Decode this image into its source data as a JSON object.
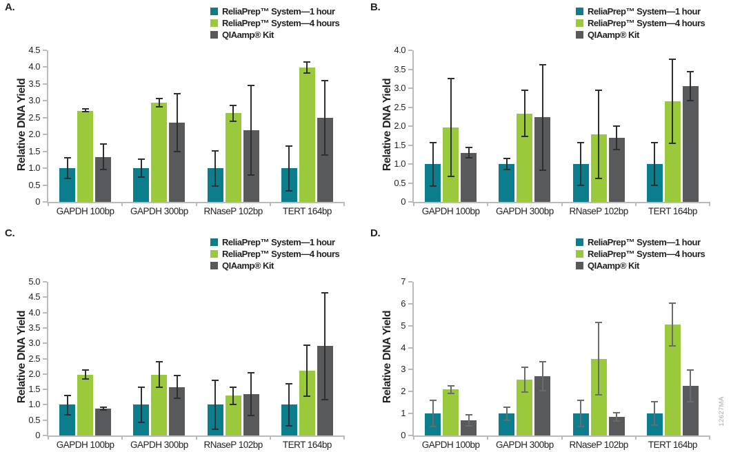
{
  "figure_id": "12627MA",
  "ylabel": "Relative DNA Yield",
  "categories": [
    "GAPDH 100bp",
    "GAPDH 300bp",
    "RNaseP 102bp",
    "TERT 164bp"
  ],
  "legend": [
    {
      "label": "ReliaPrep™ System—1 hour",
      "color": "#0b7d8c"
    },
    {
      "label": "ReliaPrep™ System—4 hours",
      "color": "#9aca3c"
    },
    {
      "label": "QIAamp® Kit",
      "color": "#58595b"
    }
  ],
  "colors": {
    "axis": "#b9babc",
    "text": "#231f20",
    "figure_number": "#a7a9ac"
  },
  "chart_data": [
    {
      "panel": "A.",
      "type": "bar",
      "ylim": [
        0,
        4.5
      ],
      "ytick_step": 0.5,
      "ytick_labels": [
        "0",
        "0.5",
        "1.0",
        "1.5",
        "2.0",
        "2.5",
        "3.0",
        "3.5",
        "4.0",
        "4.5"
      ],
      "error_color": "#2d2e30",
      "series": [
        {
          "name": "ReliaPrep™ System—1 hour",
          "values": [
            1.0,
            1.0,
            1.0,
            1.0
          ],
          "err_low": [
            0.7,
            0.73,
            0.48,
            0.33
          ],
          "err_high": [
            1.3,
            1.27,
            1.52,
            1.66
          ]
        },
        {
          "name": "ReliaPrep™ System—4 hours",
          "values": [
            2.71,
            2.95,
            2.64,
            3.99
          ],
          "err_low": [
            2.67,
            2.83,
            2.4,
            3.83
          ],
          "err_high": [
            2.76,
            3.06,
            2.87,
            4.15
          ]
        },
        {
          "name": "QIAamp® Kit",
          "values": [
            1.33,
            2.36,
            2.12,
            2.5
          ],
          "err_low": [
            0.96,
            1.5,
            0.8,
            1.4
          ],
          "err_high": [
            1.71,
            3.21,
            3.45,
            3.59
          ]
        }
      ]
    },
    {
      "panel": "B.",
      "type": "bar",
      "ylim": [
        0,
        4.0
      ],
      "ytick_step": 0.5,
      "ytick_labels": [
        "0",
        "0.5",
        "1.0",
        "1.5",
        "2.0",
        "2.5",
        "3.0",
        "3.5",
        "4.0"
      ],
      "error_color": "#2d2e30",
      "series": [
        {
          "name": "ReliaPrep™ System—1 hour",
          "values": [
            1.0,
            1.0,
            1.0,
            1.0
          ],
          "err_low": [
            0.42,
            0.85,
            0.44,
            0.43
          ],
          "err_high": [
            1.57,
            1.15,
            1.56,
            1.56
          ]
        },
        {
          "name": "ReliaPrep™ System—4 hours",
          "values": [
            1.97,
            2.33,
            1.79,
            2.65
          ],
          "err_low": [
            0.68,
            1.73,
            0.61,
            1.54
          ],
          "err_high": [
            3.26,
            2.94,
            2.95,
            3.77
          ]
        },
        {
          "name": "QIAamp® Kit",
          "values": [
            1.3,
            2.23,
            1.69,
            3.05
          ],
          "err_low": [
            1.17,
            0.84,
            1.38,
            2.68
          ],
          "err_high": [
            1.43,
            3.62,
            2.0,
            3.43
          ]
        }
      ]
    },
    {
      "panel": "C.",
      "type": "bar",
      "ylim": [
        0,
        5.0
      ],
      "ytick_step": 0.5,
      "ytick_labels": [
        "0",
        "0.5",
        "1.0",
        "1.5",
        "2.0",
        "2.5",
        "3.0",
        "3.5",
        "4.0",
        "4.5",
        "5.0"
      ],
      "error_color": "#2d2e30",
      "series": [
        {
          "name": "ReliaPrep™ System—1 hour",
          "values": [
            1.0,
            1.0,
            1.0,
            1.0
          ],
          "err_low": [
            0.68,
            0.42,
            0.2,
            0.31
          ],
          "err_high": [
            1.31,
            1.57,
            1.8,
            1.68
          ]
        },
        {
          "name": "ReliaPrep™ System—4 hours",
          "values": [
            1.97,
            1.98,
            1.3,
            2.1
          ],
          "err_low": [
            1.83,
            1.57,
            1.02,
            1.27
          ],
          "err_high": [
            2.12,
            2.4,
            1.58,
            2.93
          ]
        },
        {
          "name": "QIAamp® Kit",
          "values": [
            0.88,
            1.57,
            1.34,
            2.92
          ],
          "err_low": [
            0.84,
            1.21,
            0.65,
            1.17
          ],
          "err_high": [
            0.92,
            1.95,
            2.03,
            4.65
          ]
        }
      ]
    },
    {
      "panel": "D.",
      "type": "bar",
      "ylim": [
        0,
        7
      ],
      "ytick_step": 1,
      "ytick_labels": [
        "0",
        "1",
        "2",
        "3",
        "4",
        "5",
        "6",
        "7"
      ],
      "error_color": "#6a6b6e",
      "series": [
        {
          "name": "ReliaPrep™ System—1 hour",
          "values": [
            1.0,
            1.0,
            1.0,
            1.0
          ],
          "err_low": [
            0.4,
            0.68,
            0.42,
            0.48
          ],
          "err_high": [
            1.6,
            1.3,
            1.6,
            1.53
          ]
        },
        {
          "name": "ReliaPrep™ System—4 hours",
          "values": [
            2.1,
            2.55,
            3.5,
            5.05
          ],
          "err_low": [
            1.93,
            1.98,
            1.85,
            4.07
          ],
          "err_high": [
            2.27,
            3.12,
            5.15,
            6.03
          ]
        },
        {
          "name": "QIAamp® Kit",
          "values": [
            0.68,
            2.7,
            0.85,
            2.27
          ],
          "err_low": [
            0.45,
            2.05,
            0.65,
            1.55
          ],
          "err_high": [
            0.93,
            3.35,
            1.05,
            2.98
          ]
        }
      ]
    }
  ]
}
